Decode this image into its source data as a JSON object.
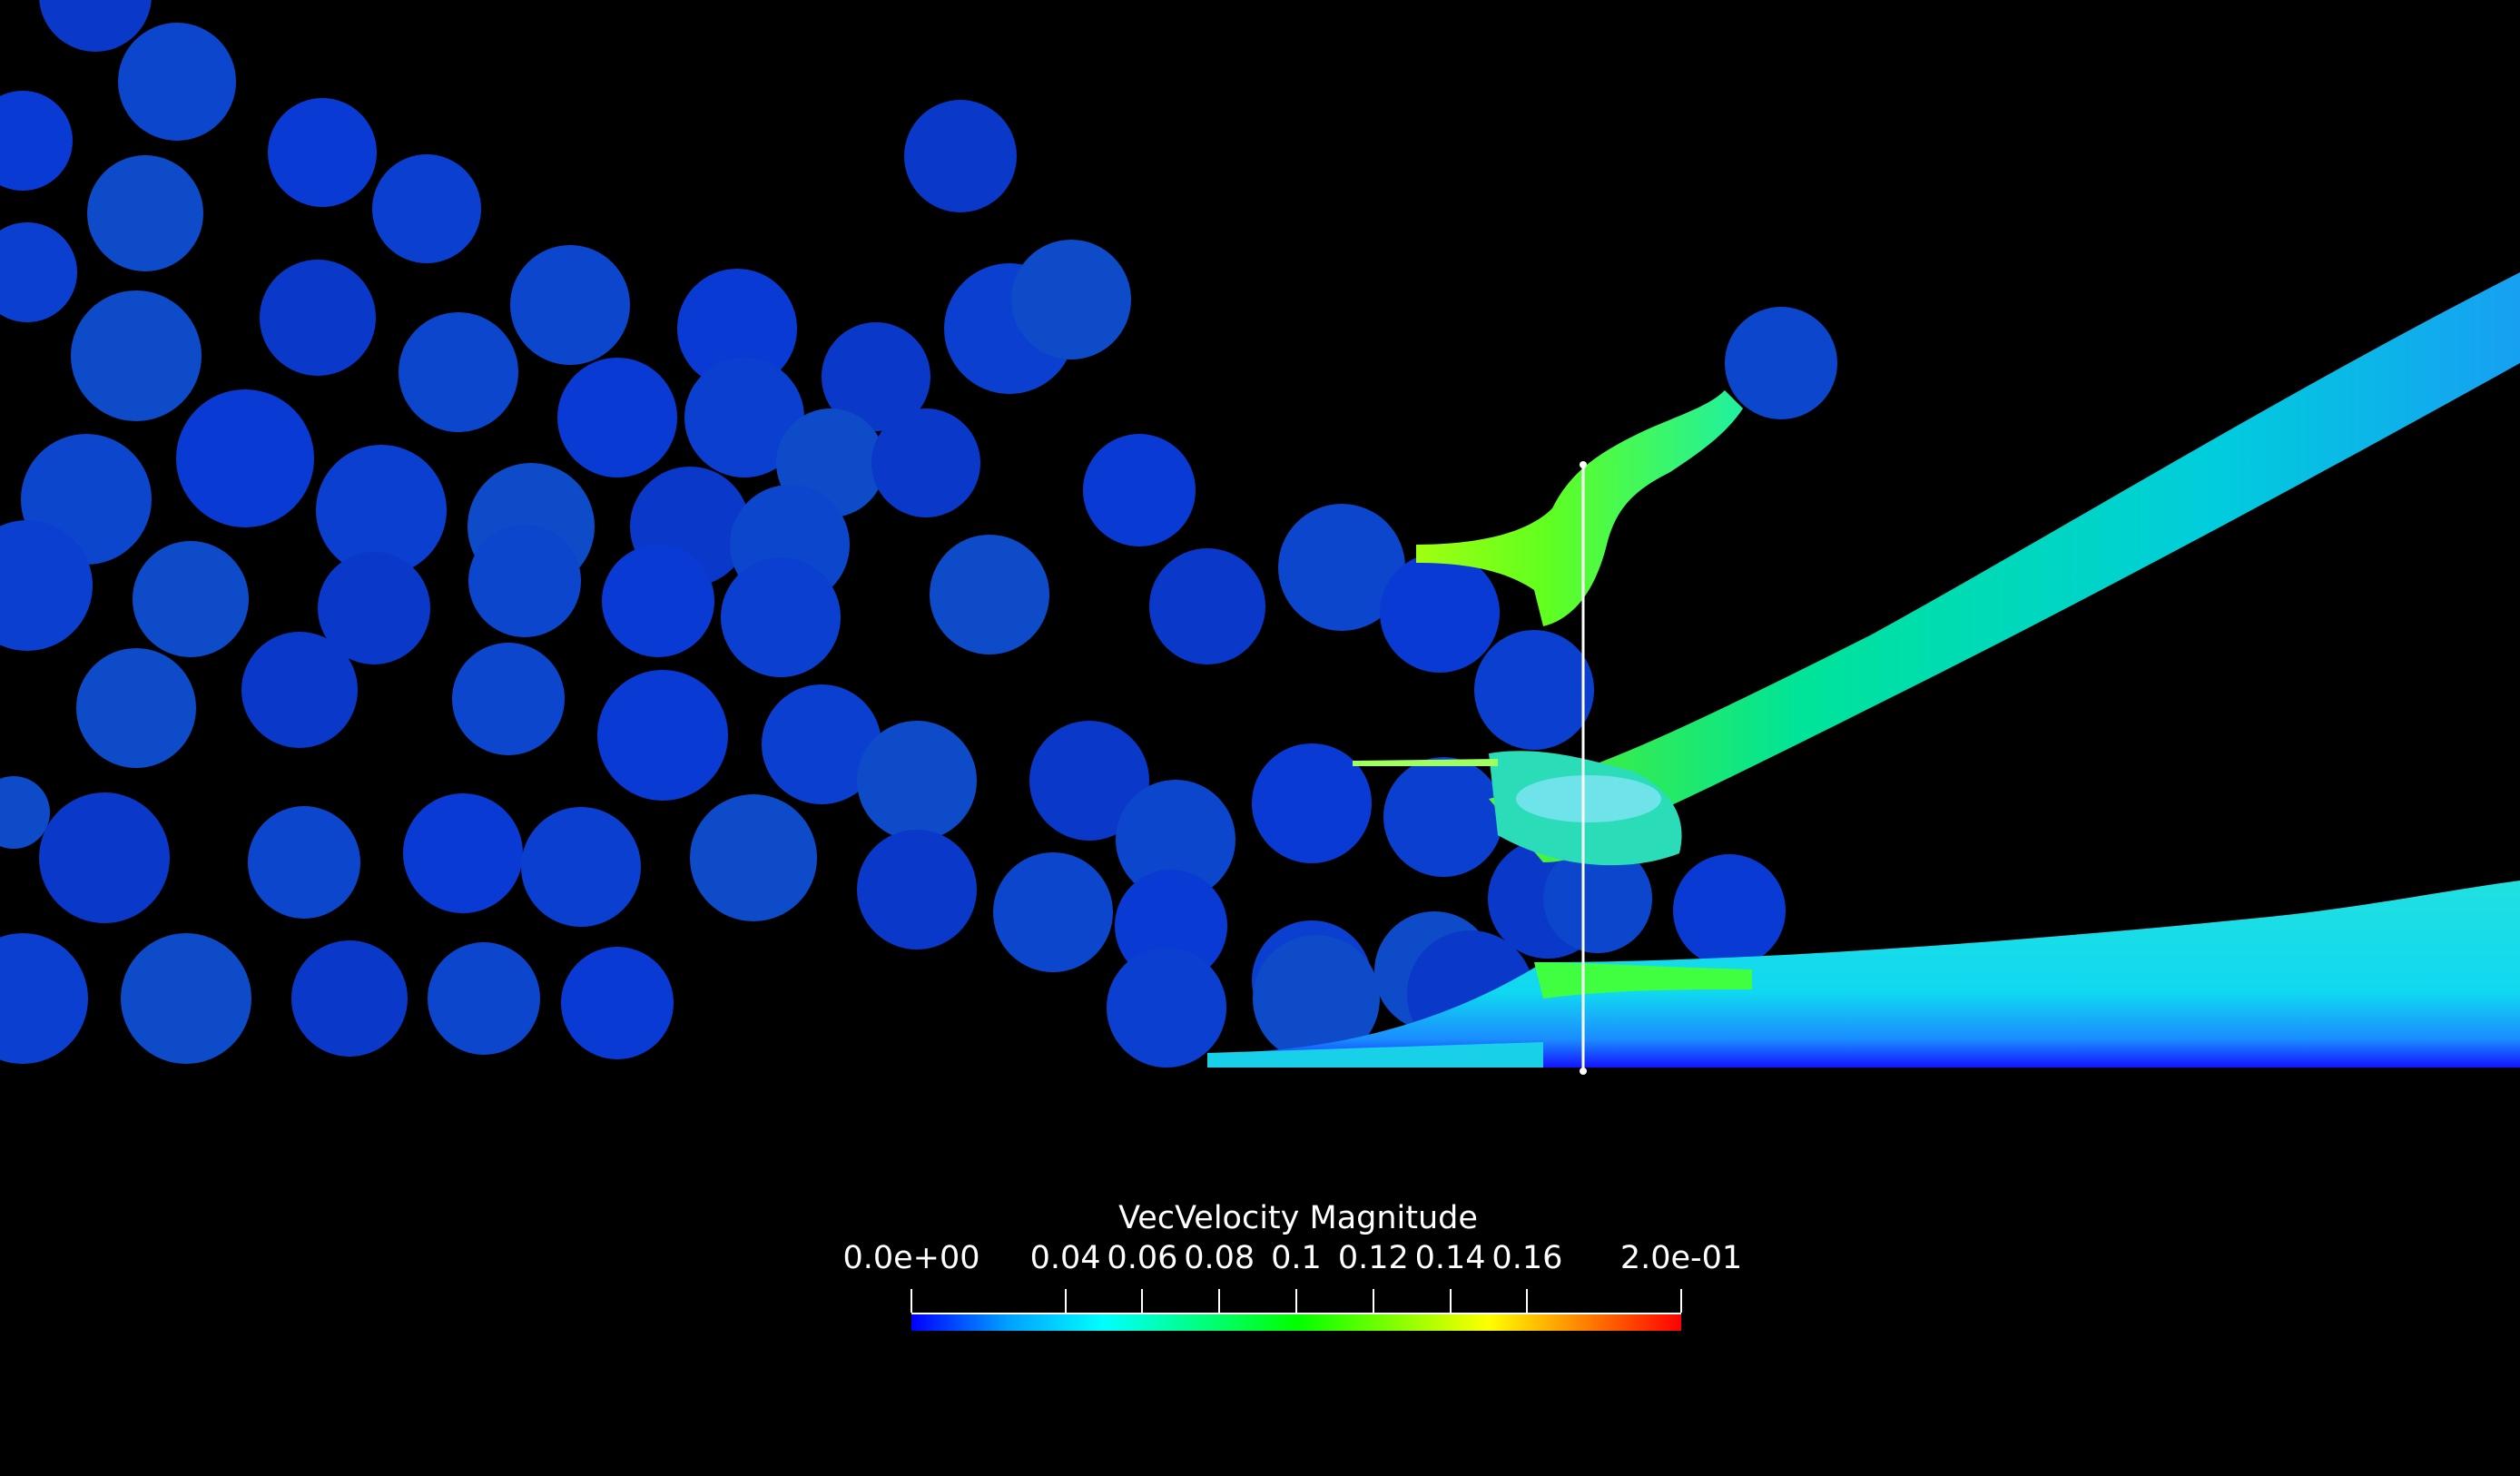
{
  "legend": {
    "title": "VecVelocity Magnitude",
    "range": [
      0.0,
      0.2
    ],
    "tick_labels": [
      "0.0e+00",
      "0.04",
      "0.06",
      "0.08",
      "0.1",
      "0.12",
      "0.14",
      "0.16",
      "2.0e-01"
    ],
    "tick_values": [
      0.0,
      0.04,
      0.06,
      0.08,
      0.1,
      0.12,
      0.14,
      0.16,
      0.2
    ],
    "colormap": [
      "#0000ff",
      "#00a0ff",
      "#00ffff",
      "#00ff80",
      "#00ff00",
      "#80ff00",
      "#ffff00",
      "#ff8000",
      "#ff0000"
    ]
  },
  "colors": {
    "background": "#000000",
    "grain_fill": "#0a3ed0",
    "probe_line": "#ffffff"
  }
}
